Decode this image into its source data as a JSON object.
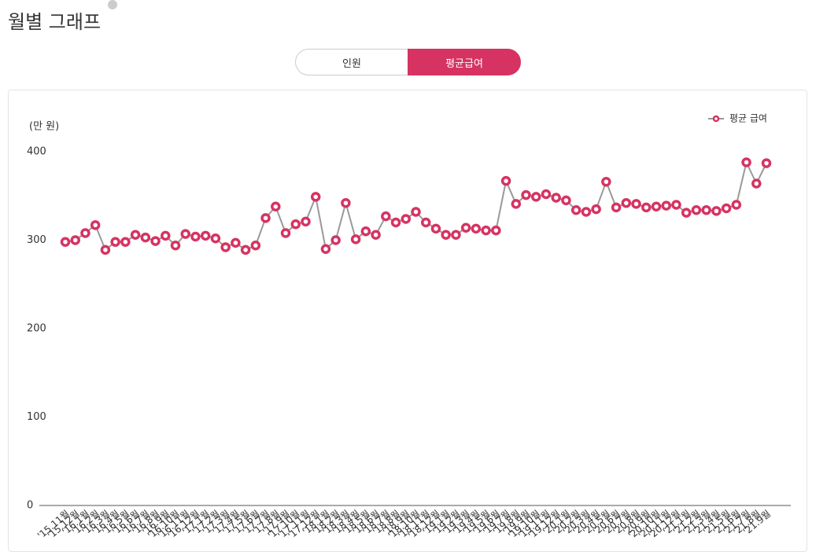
{
  "header": {
    "title": "월별 그래프"
  },
  "tabs": [
    "인원",
    "평균급여"
  ],
  "chart_data": {
    "type": "line",
    "y_label": "(만 원)",
    "categories": [
      "'15.11월",
      "'15.12월",
      "'16.1월",
      "'16.2월",
      "'16.3월",
      "'16.4월",
      "'16.5월",
      "'16.6월",
      "'16.7월",
      "'16.8월",
      "'16.9월",
      "'16.10월",
      "'16.11월",
      "'16.12월",
      "'17.1월",
      "'17.2월",
      "'17.3월",
      "'17.4월",
      "'17.5월",
      "'17.6월",
      "'17.7월",
      "'17.8월",
      "'17.9월",
      "'17.10월",
      "'17.11월",
      "'17.12월",
      "'18.1월",
      "'18.2월",
      "'18.3월",
      "'18.4월",
      "'18.5월",
      "'18.6월",
      "'18.7월",
      "'18.8월",
      "'18.9월",
      "'18.10월",
      "'18.11월",
      "'18.12월",
      "'19.1월",
      "'19.2월",
      "'19.3월",
      "'19.4월",
      "'19.5월",
      "'19.6월",
      "'19.7월",
      "'19.8월",
      "'19.9월",
      "'19.10월",
      "'19.11월",
      "'19.12월",
      "'20.1월",
      "'20.2월",
      "'20.3월",
      "'20.4월",
      "'20.5월",
      "'20.6월",
      "'20.7월",
      "'20.8월",
      "'20.9월",
      "'20.10월",
      "'20.11월",
      "'20.12월",
      "'21.1월",
      "'21.2월",
      "'21.3월",
      "'21.4월",
      "'21.5월",
      "'21.6월",
      "'21.7월",
      "'21.8월",
      "'21.9월"
    ],
    "series": [
      {
        "name": "평균 급여",
        "color": "#d63362",
        "line_color": "#999999",
        "values": [
          298,
          300,
          308,
          317,
          289,
          298,
          298,
          306,
          303,
          299,
          305,
          294,
          307,
          304,
          305,
          302,
          292,
          297,
          289,
          294,
          325,
          338,
          308,
          318,
          321,
          349,
          290,
          300,
          342,
          301,
          310,
          306,
          327,
          320,
          324,
          332,
          320,
          313,
          306,
          306,
          314,
          313,
          311,
          311,
          367,
          341,
          351,
          349,
          352,
          348,
          345,
          334,
          332,
          335,
          366,
          337,
          342,
          341,
          337,
          338,
          339,
          340,
          331,
          334,
          334,
          333,
          336,
          340,
          388,
          364,
          387
        ]
      }
    ],
    "ylim": [
      0,
      400
    ],
    "yticks": [
      0,
      100,
      200,
      300,
      400
    ],
    "grid": false,
    "legend": "top-right"
  }
}
